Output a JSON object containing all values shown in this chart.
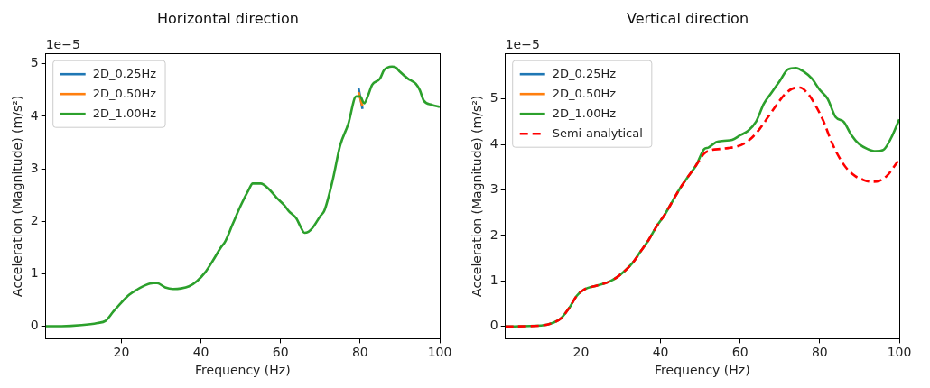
{
  "chart_data": [
    {
      "type": "line",
      "title": "Horizontal direction",
      "xlabel": "Frequency (Hz)",
      "ylabel": "Acceleration (Magnitude) (m/s²)",
      "annotations": [
        "1e−5"
      ],
      "xlim": [
        1,
        100
      ],
      "xticks": [
        20,
        40,
        60,
        80,
        100
      ],
      "ylim": [
        -0.24,
        5.2
      ],
      "yticks": [
        0,
        1,
        2,
        3,
        4,
        5
      ],
      "grid": false,
      "legend": "top left",
      "line_style": "solid",
      "marker": "none",
      "series": [
        {
          "name": "2D_0.25Hz",
          "color": "#1f77b4",
          "x": [
            79.6,
            80.6
          ],
          "values": [
            4.54,
            4.14
          ]
        },
        {
          "name": "2D_0.50Hz",
          "color": "#ff7f0e",
          "x": [
            79.6,
            80.6
          ],
          "values": [
            4.46,
            4.19
          ]
        },
        {
          "name": "2D_1.00Hz",
          "color": "#2ca02c",
          "x": [
            1,
            5,
            10,
            14,
            16,
            18,
            20,
            22,
            24,
            26,
            28,
            29,
            31,
            33,
            35,
            37,
            39,
            41,
            43,
            45,
            46,
            48,
            50,
            52,
            53,
            55,
            57,
            59,
            61,
            62,
            64,
            65,
            66,
            67,
            68,
            70,
            71,
            73,
            75,
            77,
            79,
            80,
            81,
            82,
            83,
            85,
            86,
            88,
            89,
            90,
            92,
            94,
            95,
            96,
            98,
            100
          ],
          "values": [
            0,
            0,
            0.02,
            0.06,
            0.1,
            0.28,
            0.45,
            0.6,
            0.7,
            0.78,
            0.82,
            0.82,
            0.74,
            0.71,
            0.72,
            0.76,
            0.86,
            1.02,
            1.25,
            1.5,
            1.6,
            1.95,
            2.3,
            2.6,
            2.72,
            2.72,
            2.62,
            2.45,
            2.3,
            2.2,
            2.05,
            1.9,
            1.78,
            1.8,
            1.87,
            2.1,
            2.2,
            2.75,
            3.45,
            3.85,
            4.38,
            4.38,
            4.25,
            4.4,
            4.6,
            4.72,
            4.88,
            4.95,
            4.93,
            4.85,
            4.72,
            4.62,
            4.5,
            4.3,
            4.22,
            4.18
          ]
        }
      ]
    },
    {
      "type": "line",
      "title": "Vertical direction",
      "xlabel": "Frequency (Hz)",
      "ylabel": "Acceleration (Magnitude) (m/s²)",
      "annotations": [
        "1e−5"
      ],
      "xlim": [
        1,
        100
      ],
      "xticks": [
        20,
        40,
        60,
        80,
        100
      ],
      "ylim": [
        -0.27,
        6.0
      ],
      "yticks": [
        0,
        1,
        2,
        3,
        4,
        5
      ],
      "grid": false,
      "legend": "top left",
      "marker": "none",
      "series": [
        {
          "name": "2D_0.25Hz",
          "color": "#1f77b4",
          "line_style": "solid"
        },
        {
          "name": "2D_0.50Hz",
          "color": "#ff7f0e",
          "line_style": "solid"
        },
        {
          "name": "2D_1.00Hz",
          "color": "#2ca02c",
          "line_style": "solid",
          "x": [
            1,
            10,
            13,
            15,
            17,
            19,
            21,
            24,
            27,
            29,
            31,
            33,
            35,
            37,
            39,
            41,
            43,
            45,
            47,
            49,
            51,
            52,
            54,
            56,
            58,
            60,
            62,
            64,
            66,
            68,
            70,
            72,
            74,
            76,
            78,
            80,
            82,
            84,
            86,
            88,
            90,
            92,
            94,
            96,
            98,
            100
          ],
          "values": [
            0,
            0.02,
            0.08,
            0.18,
            0.4,
            0.68,
            0.82,
            0.9,
            0.98,
            1.08,
            1.22,
            1.4,
            1.65,
            1.9,
            2.2,
            2.45,
            2.75,
            3.05,
            3.3,
            3.55,
            3.9,
            3.93,
            4.05,
            4.08,
            4.1,
            4.2,
            4.3,
            4.5,
            4.9,
            5.15,
            5.4,
            5.65,
            5.68,
            5.6,
            5.45,
            5.2,
            5.0,
            4.6,
            4.5,
            4.2,
            4.0,
            3.9,
            3.85,
            3.88,
            4.15,
            4.55
          ]
        },
        {
          "name": "Semi-analytical",
          "color": "#ff0000",
          "line_style": "dashed",
          "x": [
            1,
            10,
            13,
            15,
            17,
            19,
            21,
            24,
            27,
            29,
            31,
            33,
            35,
            37,
            39,
            41,
            43,
            45,
            47,
            49,
            51,
            53,
            55,
            57,
            59,
            61,
            63,
            65,
            67,
            69,
            71,
            73,
            75,
            77,
            79,
            81,
            83,
            85,
            87,
            89,
            91,
            93,
            95,
            97,
            99,
            100
          ],
          "values": [
            0,
            0.02,
            0.08,
            0.18,
            0.4,
            0.68,
            0.82,
            0.9,
            0.98,
            1.08,
            1.22,
            1.4,
            1.65,
            1.9,
            2.2,
            2.45,
            2.75,
            3.05,
            3.3,
            3.55,
            3.8,
            3.88,
            3.9,
            3.92,
            3.95,
            4.02,
            4.15,
            4.35,
            4.6,
            4.85,
            5.08,
            5.22,
            5.25,
            5.12,
            4.85,
            4.5,
            4.05,
            3.7,
            3.45,
            3.3,
            3.22,
            3.18,
            3.2,
            3.32,
            3.55,
            3.68
          ]
        }
      ]
    }
  ]
}
